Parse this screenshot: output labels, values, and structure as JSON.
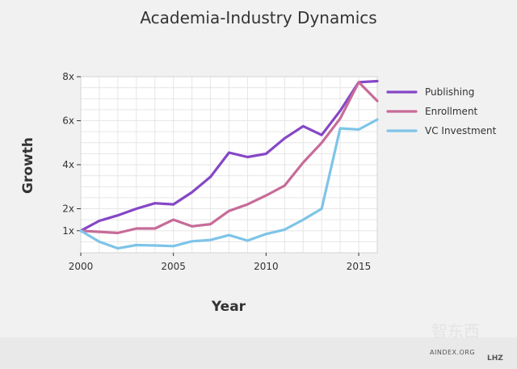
{
  "chart_data": {
    "type": "line",
    "title": "Academia-Industry Dynamics",
    "xlabel": "Year",
    "ylabel": "Growth",
    "x": [
      2000,
      2001,
      2002,
      2003,
      2004,
      2005,
      2006,
      2007,
      2008,
      2009,
      2010,
      2011,
      2012,
      2013,
      2014,
      2015,
      2016
    ],
    "xlim": [
      2000,
      2016
    ],
    "ylim": [
      0,
      8
    ],
    "x_ticks": [
      {
        "value": 2000,
        "label": "2000"
      },
      {
        "value": 2005,
        "label": "2005"
      },
      {
        "value": 2010,
        "label": "2010"
      },
      {
        "value": 2015,
        "label": "2015"
      }
    ],
    "y_ticks": [
      {
        "value": 1,
        "label": "1x"
      },
      {
        "value": 2,
        "label": "2x"
      },
      {
        "value": 4,
        "label": "4x"
      },
      {
        "value": 6,
        "label": "6x"
      },
      {
        "value": 8,
        "label": "8x"
      }
    ],
    "grid": true,
    "legend_position": "right",
    "series": [
      {
        "name": "Publishing",
        "color": "#8547c6",
        "values": [
          1.0,
          1.45,
          1.7,
          2.0,
          2.25,
          2.2,
          2.75,
          3.45,
          4.55,
          4.35,
          4.5,
          5.2,
          5.75,
          5.35,
          6.45,
          7.75,
          7.8
        ]
      },
      {
        "name": "Enrollment",
        "color": "#c76b98",
        "values": [
          1.0,
          0.95,
          0.9,
          1.1,
          1.1,
          1.5,
          1.2,
          1.3,
          1.9,
          2.2,
          2.6,
          3.05,
          4.1,
          5.0,
          6.1,
          7.75,
          6.9
        ]
      },
      {
        "name": "VC Investment",
        "color": "#7ec4e8",
        "values": [
          1.0,
          0.5,
          0.2,
          0.35,
          0.33,
          0.3,
          0.52,
          0.58,
          0.8,
          0.55,
          0.85,
          1.05,
          1.5,
          2.0,
          5.65,
          5.6,
          6.05
        ]
      }
    ]
  },
  "footer": {
    "source": "AINDEX.ORG",
    "watermark": "智东西",
    "corner": "LHZ"
  }
}
